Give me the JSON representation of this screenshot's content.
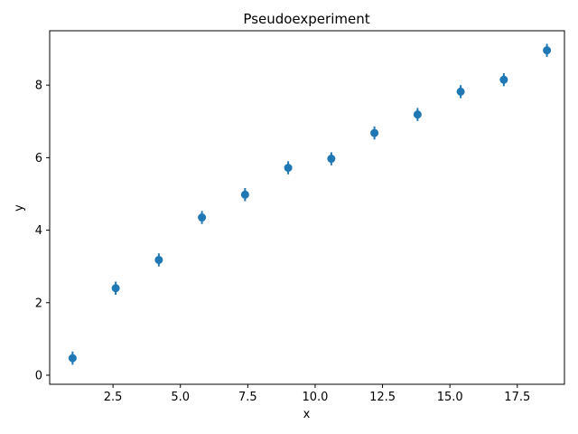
{
  "chart_data": {
    "type": "scatter",
    "title": "Pseudoexperiment",
    "xlabel": "x",
    "ylabel": "y",
    "xlim": [
      0.15,
      19.25
    ],
    "ylim": [
      -0.25,
      9.5
    ],
    "x_ticks": [
      2.5,
      5.0,
      7.5,
      10.0,
      12.5,
      15.0,
      17.5
    ],
    "x_tick_labels": [
      "2.5",
      "5.0",
      "7.5",
      "10.0",
      "12.5",
      "15.0",
      "17.5"
    ],
    "y_ticks": [
      0,
      2,
      4,
      6,
      8
    ],
    "y_tick_labels": [
      "0",
      "2",
      "4",
      "6",
      "8"
    ],
    "grid": false,
    "legend": "none",
    "series": [
      {
        "color": "#1f77b4",
        "marker": "circle",
        "x": [
          1.0,
          2.6,
          4.2,
          5.8,
          7.4,
          9.0,
          10.6,
          12.2,
          13.8,
          15.4,
          17.0,
          18.6
        ],
        "y": [
          0.47,
          2.4,
          3.18,
          4.35,
          4.98,
          5.72,
          5.97,
          6.68,
          7.19,
          7.82,
          8.15,
          8.96
        ],
        "yerr": [
          0.18,
          0.18,
          0.18,
          0.18,
          0.18,
          0.18,
          0.18,
          0.18,
          0.18,
          0.18,
          0.18,
          0.18
        ]
      }
    ]
  }
}
